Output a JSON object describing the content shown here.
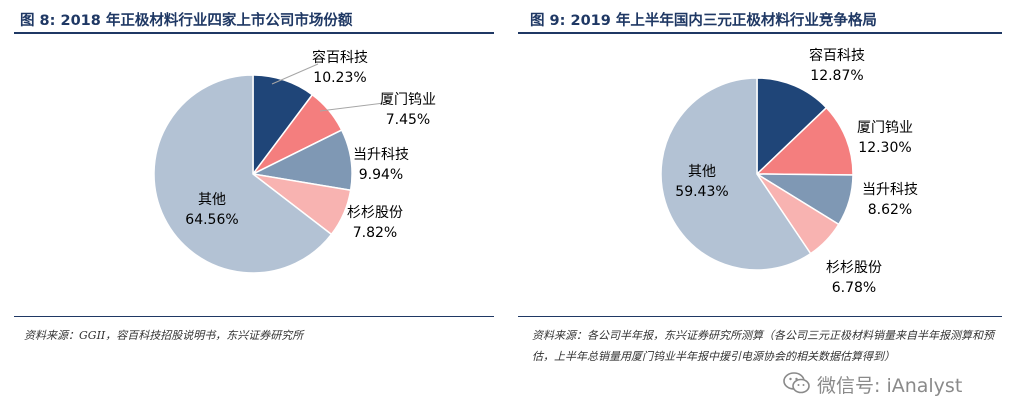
{
  "watermark": {
    "text": "微信号: iAnalyst",
    "icon": "wechat-icon"
  },
  "colors": {
    "dark_navy": "#1f4578",
    "salmon": "#f47e7e",
    "slate_blue": "#7f98b4",
    "light_pink": "#f8b3b1",
    "light_gray_blue": "#b3c2d4",
    "title": "#1f3864"
  },
  "chart_data": [
    {
      "type": "pie",
      "title": "图 8: 2018 年正极材料行业四家上市公司市场份额",
      "source": "资料来源：GGII，容百科技招股说明书，东兴证券研究所",
      "slices": [
        {
          "label": "容百科技",
          "value_label": "10.23%",
          "value": 10.23,
          "color": "#1f4578"
        },
        {
          "label": "厦门钨业",
          "value_label": "7.45%",
          "value": 7.45,
          "color": "#f47e7e"
        },
        {
          "label": "当升科技",
          "value_label": "9.94%",
          "value": 9.94,
          "color": "#7f98b4"
        },
        {
          "label": "杉杉股份",
          "value_label": "7.82%",
          "value": 7.82,
          "color": "#f8b3b1"
        },
        {
          "label": "其他",
          "value_label": "64.56%",
          "value": 64.56,
          "color": "#b3c2d4"
        }
      ]
    },
    {
      "type": "pie",
      "title": "图 9: 2019 年上半年国内三元正极材料行业竞争格局",
      "source": "资料来源：各公司半年报，东兴证券研究所测算（各公司三元正极材料销量来自半年报测算和预估，上半年总销量用厦门钨业半年报中援引电源协会的相关数据估算得到）",
      "slices": [
        {
          "label": "容百科技",
          "value_label": "12.87%",
          "value": 12.87,
          "color": "#1f4578"
        },
        {
          "label": "厦门钨业",
          "value_label": "12.30%",
          "value": 12.3,
          "color": "#f47e7e"
        },
        {
          "label": "当升科技",
          "value_label": "8.62%",
          "value": 8.62,
          "color": "#7f98b4"
        },
        {
          "label": "杉杉股份",
          "value_label": "6.78%",
          "value": 6.78,
          "color": "#f8b3b1"
        },
        {
          "label": "其他",
          "value_label": "59.43%",
          "value": 59.43,
          "color": "#b3c2d4"
        }
      ]
    }
  ]
}
